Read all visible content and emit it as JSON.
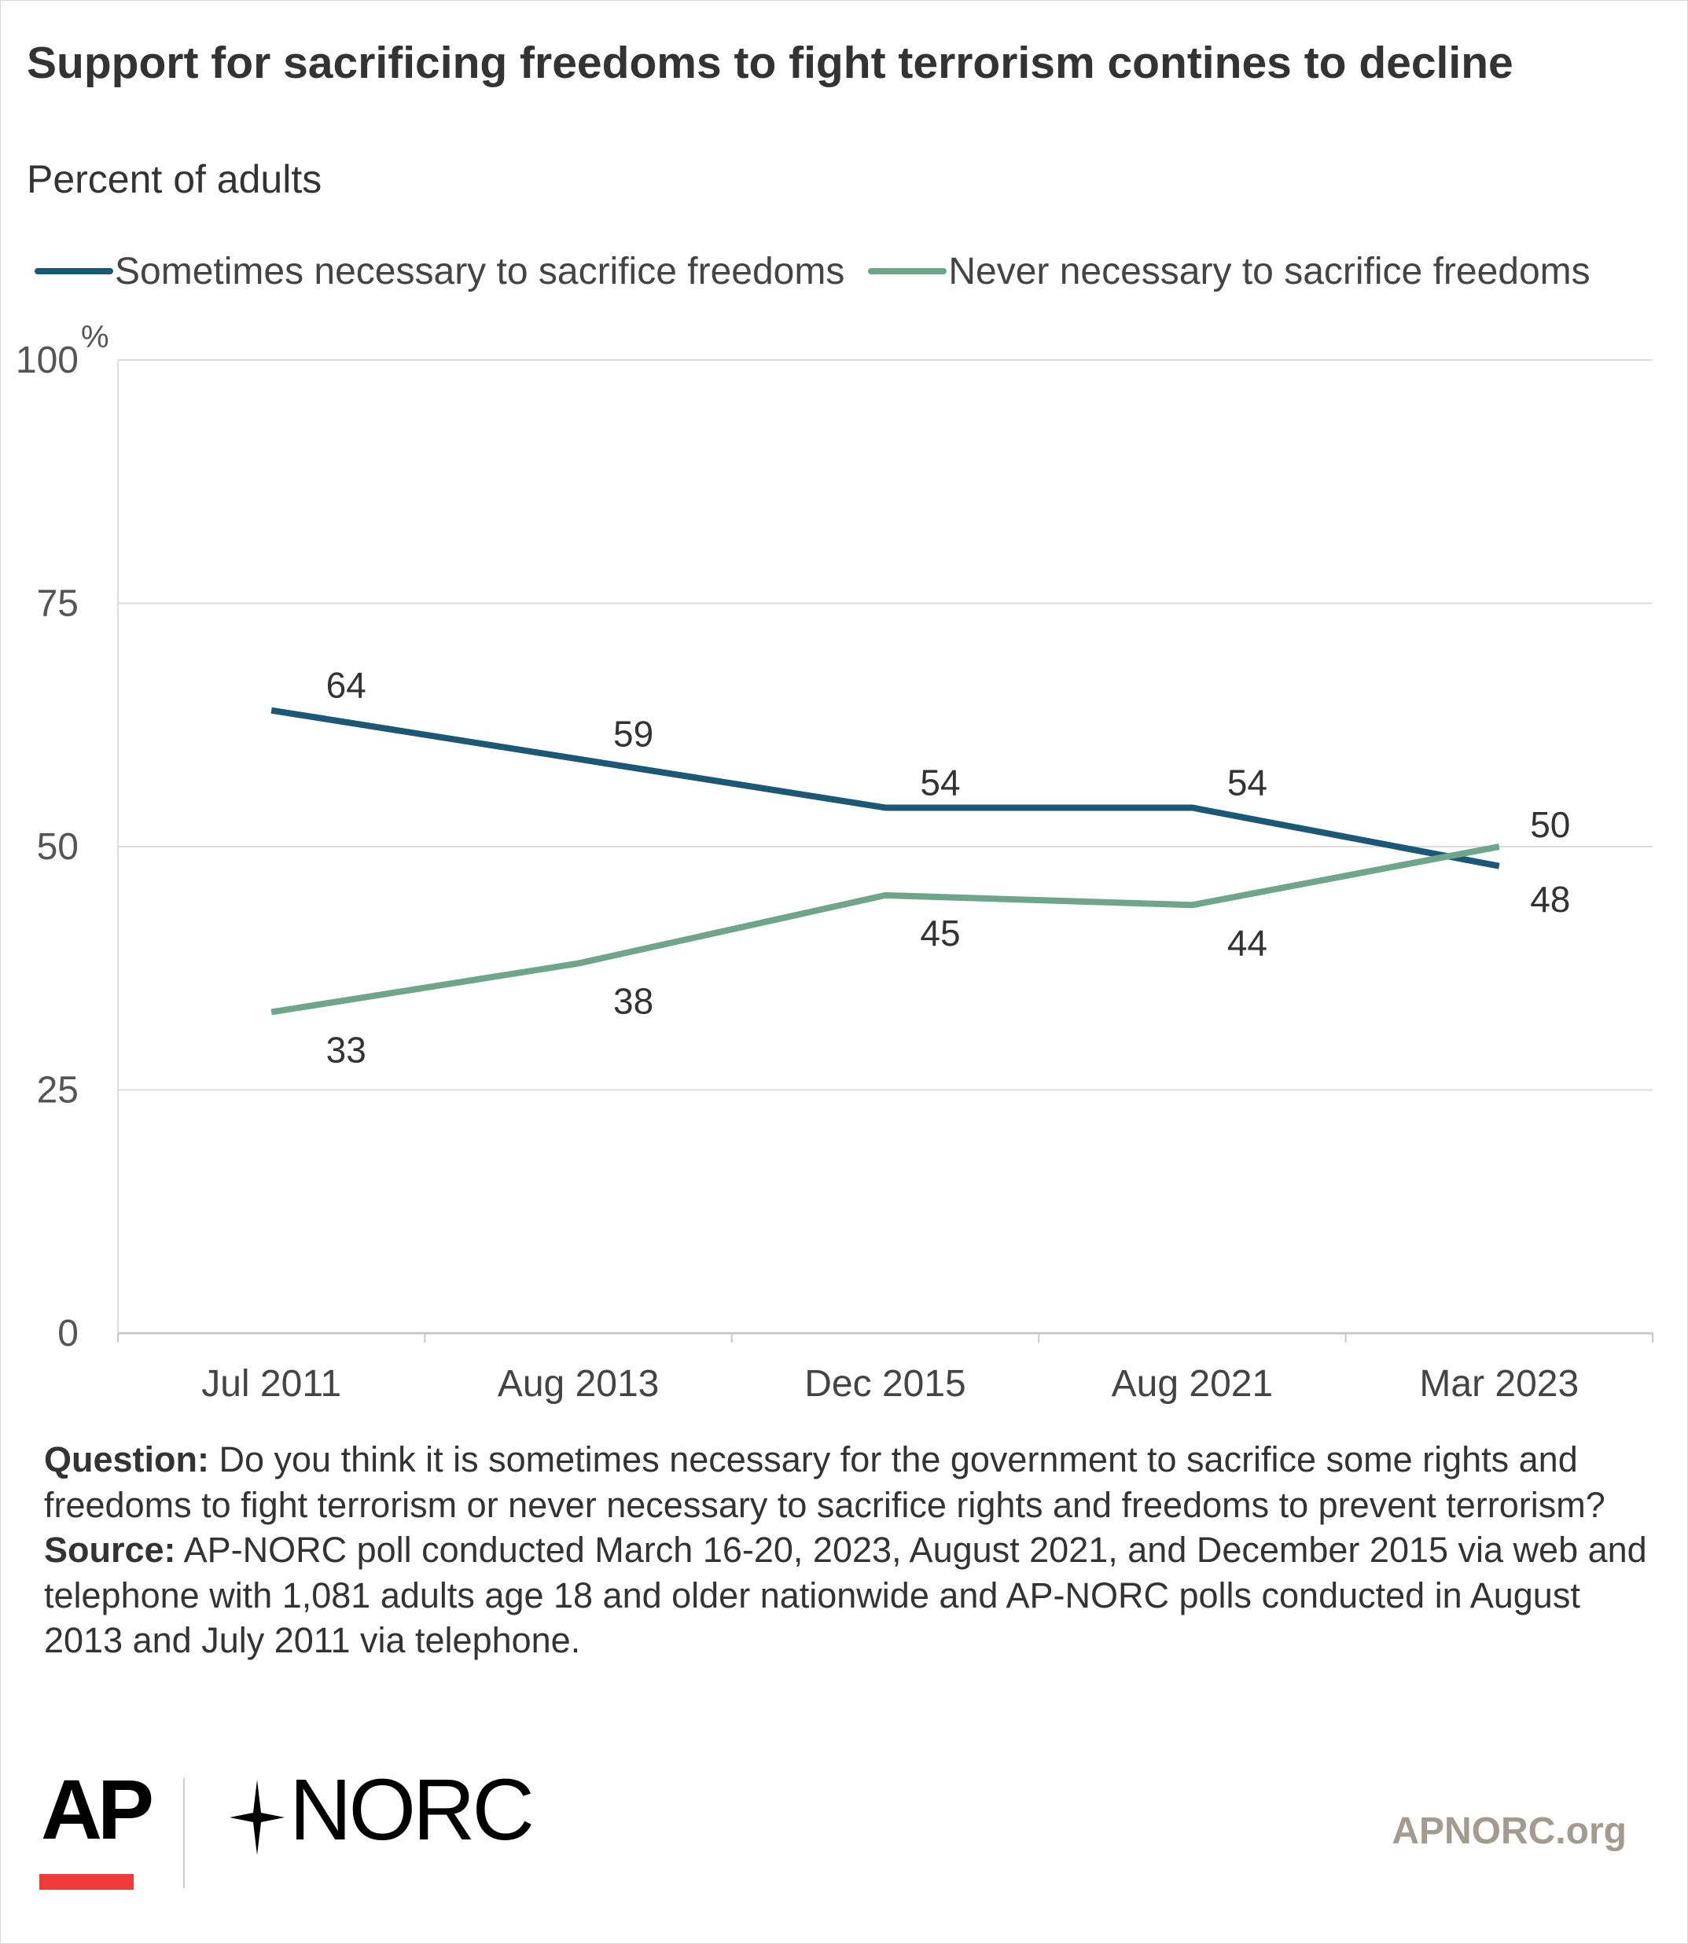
{
  "chart_data": {
    "type": "line",
    "title": "Support for sacrificing freedoms to fight terrorism contines to decline",
    "subtitle": "Percent of adults",
    "categories": [
      "Jul 2011",
      "Aug 2013",
      "Dec 2015",
      "Aug 2021",
      "Mar 2023"
    ],
    "series": [
      {
        "name": "Sometimes necessary to sacrifice freedoms",
        "color": "#1b5876",
        "values": [
          64,
          59,
          54,
          54,
          48
        ]
      },
      {
        "name": "Never necessary to sacrifice freedoms",
        "color": "#6fa68a",
        "values": [
          33,
          38,
          45,
          44,
          50
        ]
      }
    ],
    "yticks": [
      "0",
      "25",
      "50",
      "75",
      "100"
    ],
    "y_unit": "%",
    "ylim": [
      0,
      100
    ],
    "grid": true,
    "legend_position": "top"
  },
  "notes": {
    "question_label": "Question:",
    "question_text": " Do you think it is sometimes necessary for the government to sacrifice some rights and freedoms to fight terrorism or never necessary to sacrifice rights and freedoms to prevent terrorism?",
    "source_label": "Source:",
    "source_text": "  AP-NORC poll conducted March 16-20, 2023, August 2021, and December 2015 via web and telephone with 1,081 adults age 18 and older nationwide and AP-NORC polls conducted in August 2013 and July 2011 via telephone."
  },
  "footer": {
    "logo_ap": "AP",
    "logo_norc": "NORC",
    "site": "APNORC.org"
  }
}
